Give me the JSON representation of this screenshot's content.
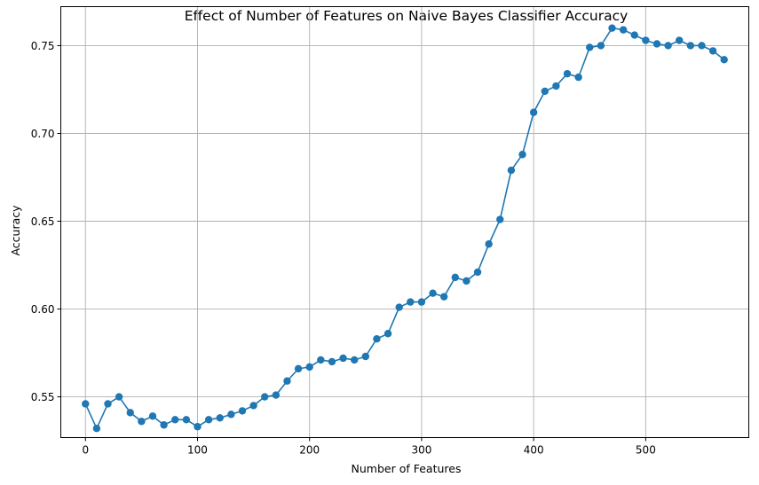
{
  "chart_data": {
    "type": "line",
    "title": "Effect of Number of Features on Naive Bayes Classifier Accuracy",
    "xlabel": "Number of Features",
    "ylabel": "Accuracy",
    "xlim": [
      -22,
      592
    ],
    "ylim": [
      0.5268,
      0.7722
    ],
    "xticks": [
      0,
      100,
      200,
      300,
      400,
      500
    ],
    "yticks": [
      0.55,
      0.6,
      0.65,
      0.7,
      0.75
    ],
    "ytick_labels": [
      "0.55",
      "0.60",
      "0.65",
      "0.70",
      "0.75"
    ],
    "grid": true,
    "marker": "circle",
    "color": "#1f77b4",
    "series": [
      {
        "x": [
          0,
          10,
          20,
          30,
          40,
          50,
          60,
          70,
          80,
          90,
          100,
          110,
          120,
          130,
          140,
          150,
          160,
          170,
          180,
          190,
          200,
          210,
          220,
          230,
          240,
          250,
          260,
          270,
          280,
          290,
          300,
          310,
          320,
          330,
          340,
          350,
          360,
          370,
          380,
          390,
          400,
          410,
          420,
          430,
          440,
          450,
          460,
          470,
          480,
          490,
          500,
          510,
          520,
          530,
          540,
          550,
          560,
          570
        ],
        "values": [
          0.546,
          0.532,
          0.546,
          0.55,
          0.541,
          0.536,
          0.539,
          0.534,
          0.537,
          0.537,
          0.533,
          0.537,
          0.538,
          0.54,
          0.542,
          0.545,
          0.55,
          0.551,
          0.559,
          0.566,
          0.567,
          0.571,
          0.57,
          0.572,
          0.571,
          0.573,
          0.583,
          0.586,
          0.601,
          0.604,
          0.604,
          0.609,
          0.607,
          0.618,
          0.616,
          0.621,
          0.637,
          0.651,
          0.679,
          0.688,
          0.712,
          0.724,
          0.727,
          0.734,
          0.732,
          0.749,
          0.75,
          0.76,
          0.759,
          0.756,
          0.753,
          0.751,
          0.75,
          0.753,
          0.75,
          0.75,
          0.747,
          0.742
        ]
      }
    ]
  }
}
